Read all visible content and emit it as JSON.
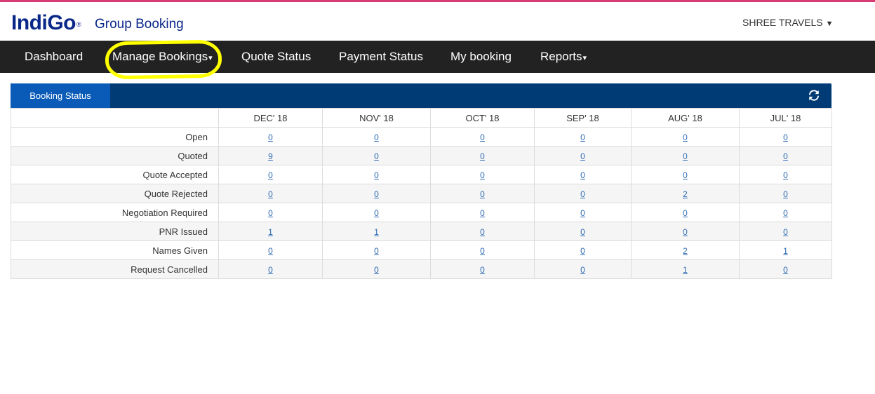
{
  "header": {
    "logo_text": "IndiGo",
    "logo_mark": "®",
    "app_title": "Group Booking",
    "user_name": "SHREE TRAVELS",
    "user_caret": "▼"
  },
  "nav": {
    "items": [
      {
        "label": "Dashboard",
        "caret": ""
      },
      {
        "label": "Manage Bookings",
        "caret": "▾"
      },
      {
        "label": "Quote Status",
        "caret": ""
      },
      {
        "label": "Payment Status",
        "caret": ""
      },
      {
        "label": "My booking",
        "caret": ""
      },
      {
        "label": "Reports",
        "caret": "▾"
      }
    ]
  },
  "panel": {
    "tab_label": "Booking Status",
    "refresh_icon": "refresh-icon"
  },
  "table": {
    "columns": [
      "",
      "DEC' 18",
      "NOV' 18",
      "OCT' 18",
      "SEP' 18",
      "AUG' 18",
      "JUL' 18"
    ],
    "rows": [
      {
        "label": "Open",
        "values": [
          "0",
          "0",
          "0",
          "0",
          "0",
          "0"
        ]
      },
      {
        "label": "Quoted",
        "values": [
          "9",
          "0",
          "0",
          "0",
          "0",
          "0"
        ]
      },
      {
        "label": "Quote Accepted",
        "values": [
          "0",
          "0",
          "0",
          "0",
          "0",
          "0"
        ]
      },
      {
        "label": "Quote Rejected",
        "values": [
          "0",
          "0",
          "0",
          "0",
          "2",
          "0"
        ]
      },
      {
        "label": "Negotiation Required",
        "values": [
          "0",
          "0",
          "0",
          "0",
          "0",
          "0"
        ]
      },
      {
        "label": "PNR Issued",
        "values": [
          "1",
          "1",
          "0",
          "0",
          "0",
          "0"
        ]
      },
      {
        "label": "Names Given",
        "values": [
          "0",
          "0",
          "0",
          "0",
          "2",
          "1"
        ]
      },
      {
        "label": "Request Cancelled",
        "values": [
          "0",
          "0",
          "0",
          "0",
          "1",
          "0"
        ]
      }
    ]
  },
  "colors": {
    "brand_blue": "#0a2889",
    "nav_bg": "#222222",
    "panel_header": "#003b75",
    "panel_tab": "#0a5bb8",
    "highlight": "#ffff00",
    "top_accent": "#d63b73"
  }
}
